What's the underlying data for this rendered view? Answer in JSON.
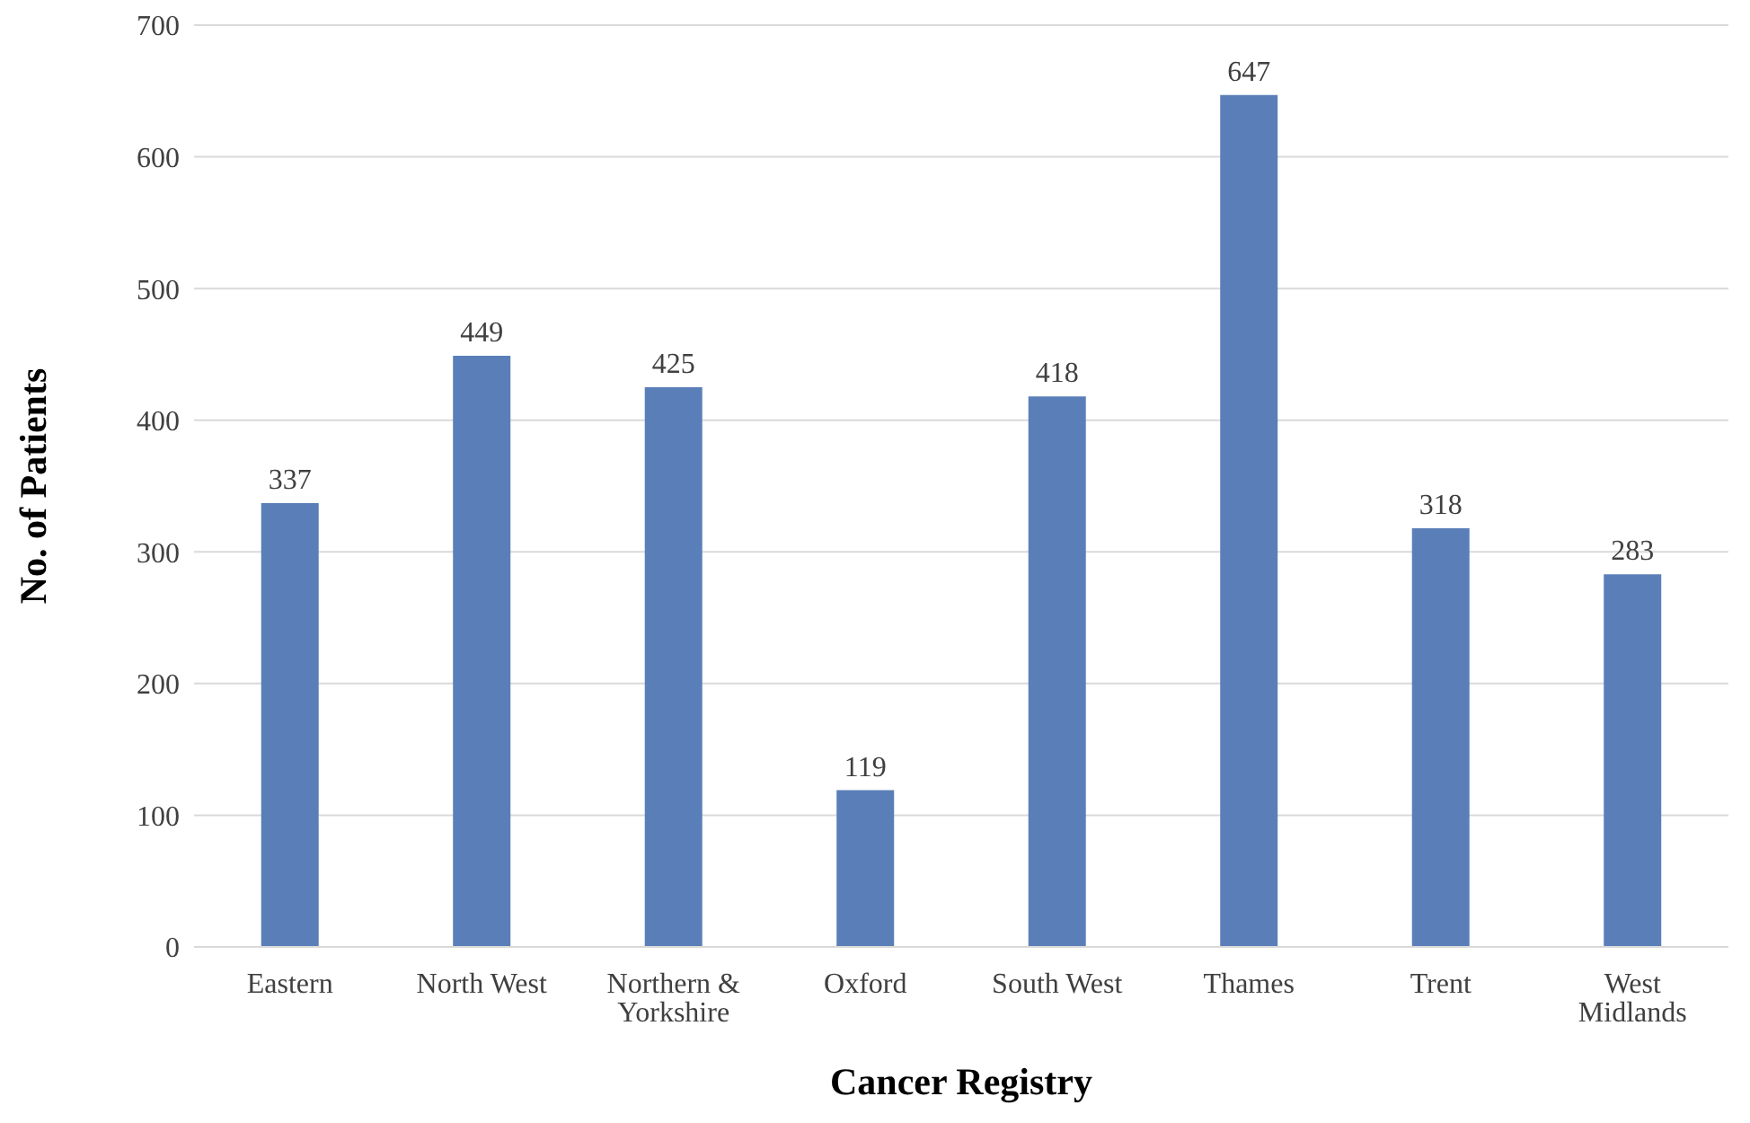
{
  "chart_data": {
    "type": "bar",
    "xlabel": "Cancer Registry",
    "ylabel": "No. of Patients",
    "categories": [
      "Eastern",
      "North West",
      "Northern & Yorkshire",
      "Oxford",
      "South West",
      "Thames",
      "Trent",
      "West Midlands"
    ],
    "values": [
      337,
      449,
      425,
      119,
      418,
      647,
      318,
      283
    ],
    "color": "#5a7fb8",
    "ylim": [
      0,
      700
    ],
    "yticks": [
      0,
      100,
      200,
      300,
      400,
      500,
      600,
      700
    ],
    "grid": "y",
    "data_labels": true
  }
}
